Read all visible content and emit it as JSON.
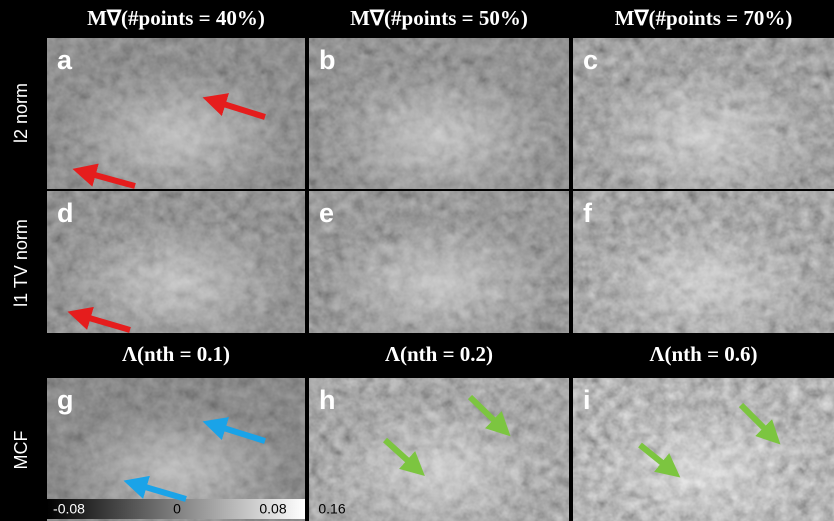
{
  "column_titles": [
    "M∇(#points = 40%)",
    "M∇(#points = 50%)",
    "M∇(#points = 70%)"
  ],
  "method_titles": [
    "Λ(nth = 0.1)",
    "Λ(nth = 0.2)",
    "Λ(nth = 0.6)"
  ],
  "row_labels": [
    "l2 norm",
    "l1 TV norm",
    "MCF"
  ],
  "panels": [
    "a",
    "b",
    "c",
    "d",
    "e",
    "f",
    "g",
    "h",
    "i"
  ],
  "colorbar": {
    "ticks": [
      -0.08,
      0,
      0.08,
      0.16
    ]
  }
}
